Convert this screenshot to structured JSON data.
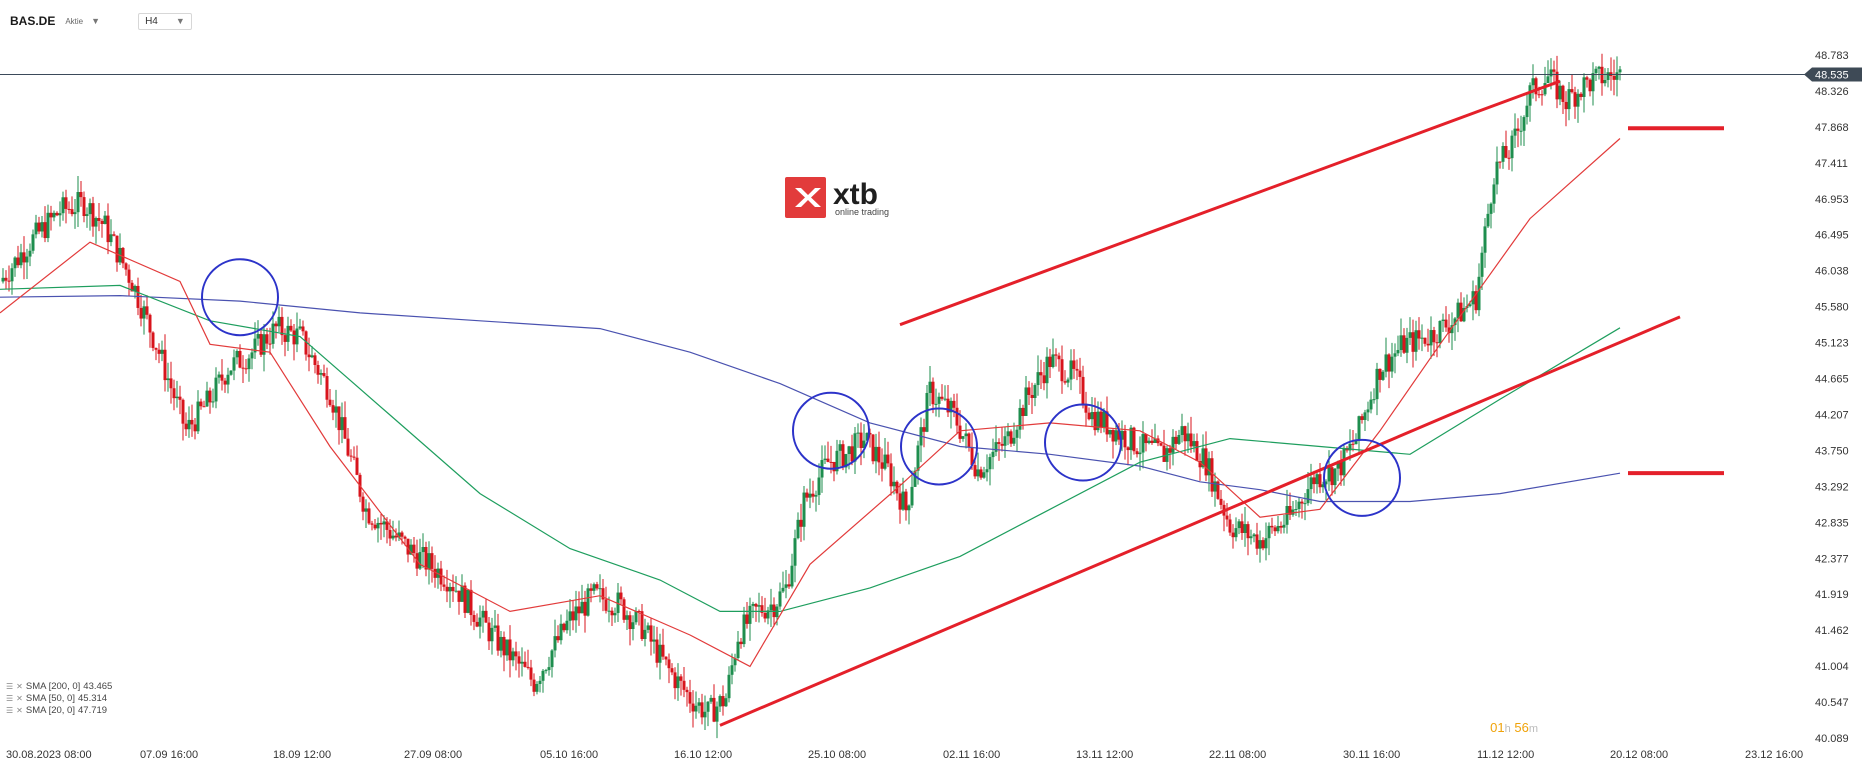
{
  "header": {
    "symbol": "BAS.DE",
    "symbol_type": "Aktie",
    "timeframe": "H4"
  },
  "watermark": {
    "brand": "xtb",
    "tagline": "online trading"
  },
  "indicators": [
    {
      "label": "SMA [200, 0]",
      "value": "43.465",
      "color": "#4a52b0"
    },
    {
      "label": "SMA [50, 0]",
      "value": "45.314",
      "color": "#1e9e5e"
    },
    {
      "label": "SMA [20, 0]",
      "value": "47.719",
      "color": "#e23b3b"
    }
  ],
  "timer": {
    "hours": "01",
    "h_unit": "h",
    "minutes": "56",
    "m_unit": "m"
  },
  "chart_data": {
    "type": "candlestick",
    "ylim": [
      40.089,
      48.783
    ],
    "y_ticks": [
      "48.783",
      "48.326",
      "47.868",
      "47.411",
      "46.953",
      "46.495",
      "46.038",
      "45.580",
      "45.123",
      "44.665",
      "44.207",
      "43.750",
      "43.292",
      "42.835",
      "42.377",
      "41.919",
      "41.462",
      "41.004",
      "40.547",
      "40.089"
    ],
    "x_ticks": [
      "30.08.2023  08:00",
      "07.09  16:00",
      "18.09  12:00",
      "27.09  08:00",
      "05.10  16:00",
      "16.10  12:00",
      "25.10  08:00",
      "02.11  16:00",
      "13.11  12:00",
      "22.11  08:00",
      "30.11  16:00",
      "11.12  12:00",
      "20.12  08:00",
      "23.12  16:00"
    ],
    "current_price": "48.535",
    "close_path": [
      [
        0,
        45.9
      ],
      [
        10,
        46.4
      ],
      [
        20,
        46.8
      ],
      [
        28,
        46.9
      ],
      [
        35,
        46.6
      ],
      [
        44,
        45.9
      ],
      [
        53,
        45.0
      ],
      [
        62,
        44.0
      ],
      [
        70,
        44.4
      ],
      [
        76,
        44.8
      ],
      [
        84,
        45.0
      ],
      [
        92,
        45.3
      ],
      [
        100,
        45.2
      ],
      [
        110,
        44.5
      ],
      [
        122,
        43.0
      ],
      [
        136,
        42.5
      ],
      [
        150,
        42.1
      ],
      [
        164,
        41.4
      ],
      [
        178,
        40.8
      ],
      [
        190,
        41.6
      ],
      [
        198,
        41.9
      ],
      [
        206,
        41.8
      ],
      [
        214,
        41.5
      ],
      [
        222,
        41.0
      ],
      [
        230,
        40.6
      ],
      [
        236,
        40.4
      ],
      [
        242,
        40.6
      ],
      [
        246,
        41.4
      ],
      [
        252,
        41.7
      ],
      [
        258,
        41.8
      ],
      [
        262,
        42.0
      ],
      [
        268,
        43.1
      ],
      [
        276,
        43.6
      ],
      [
        282,
        43.7
      ],
      [
        288,
        43.9
      ],
      [
        296,
        43.5
      ],
      [
        302,
        43.0
      ],
      [
        310,
        44.5
      ],
      [
        318,
        44.2
      ],
      [
        326,
        43.5
      ],
      [
        336,
        43.9
      ],
      [
        342,
        44.4
      ],
      [
        350,
        44.9
      ],
      [
        358,
        44.7
      ],
      [
        364,
        44.2
      ],
      [
        372,
        44.0
      ],
      [
        380,
        43.8
      ],
      [
        388,
        43.7
      ],
      [
        394,
        44.0
      ],
      [
        402,
        43.6
      ],
      [
        410,
        42.8
      ],
      [
        420,
        42.6
      ],
      [
        430,
        42.9
      ],
      [
        438,
        43.4
      ],
      [
        446,
        43.5
      ],
      [
        452,
        43.9
      ],
      [
        460,
        44.8
      ],
      [
        468,
        45.1
      ],
      [
        476,
        45.2
      ],
      [
        484,
        45.4
      ],
      [
        492,
        45.7
      ],
      [
        498,
        47.3
      ],
      [
        504,
        47.6
      ],
      [
        510,
        48.3
      ],
      [
        516,
        48.5
      ],
      [
        522,
        48.2
      ],
      [
        528,
        48.4
      ],
      [
        534,
        48.5
      ],
      [
        540,
        48.53
      ]
    ],
    "series": [
      {
        "name": "SMA [200, 0]",
        "color": "#4a52b0",
        "values": [
          [
            0,
            45.7
          ],
          [
            40,
            45.72
          ],
          [
            80,
            45.65
          ],
          [
            120,
            45.5
          ],
          [
            160,
            45.4
          ],
          [
            200,
            45.3
          ],
          [
            230,
            45.0
          ],
          [
            260,
            44.6
          ],
          [
            290,
            44.1
          ],
          [
            320,
            43.8
          ],
          [
            350,
            43.7
          ],
          [
            380,
            43.55
          ],
          [
            400,
            43.35
          ],
          [
            420,
            43.25
          ],
          [
            440,
            43.1
          ],
          [
            470,
            43.1
          ],
          [
            500,
            43.2
          ],
          [
            540,
            43.46
          ]
        ]
      },
      {
        "name": "SMA [50, 0]",
        "color": "#1e9e5e",
        "values": [
          [
            0,
            45.8
          ],
          [
            40,
            45.85
          ],
          [
            70,
            45.4
          ],
          [
            100,
            45.2
          ],
          [
            130,
            44.2
          ],
          [
            160,
            43.2
          ],
          [
            190,
            42.5
          ],
          [
            220,
            42.1
          ],
          [
            240,
            41.7
          ],
          [
            260,
            41.7
          ],
          [
            290,
            42.0
          ],
          [
            320,
            42.4
          ],
          [
            350,
            43.0
          ],
          [
            380,
            43.6
          ],
          [
            410,
            43.9
          ],
          [
            440,
            43.8
          ],
          [
            470,
            43.7
          ],
          [
            500,
            44.4
          ],
          [
            540,
            45.31
          ]
        ]
      },
      {
        "name": "SMA [20, 0]",
        "color": "#e23b3b",
        "values": [
          [
            0,
            45.5
          ],
          [
            30,
            46.4
          ],
          [
            60,
            45.9
          ],
          [
            70,
            45.1
          ],
          [
            90,
            45.0
          ],
          [
            110,
            43.8
          ],
          [
            140,
            42.3
          ],
          [
            170,
            41.7
          ],
          [
            200,
            41.9
          ],
          [
            230,
            41.4
          ],
          [
            250,
            41.0
          ],
          [
            270,
            42.3
          ],
          [
            300,
            43.3
          ],
          [
            320,
            44.0
          ],
          [
            350,
            44.1
          ],
          [
            380,
            44.0
          ],
          [
            400,
            43.6
          ],
          [
            420,
            42.9
          ],
          [
            440,
            43.0
          ],
          [
            460,
            44.0
          ],
          [
            480,
            45.1
          ],
          [
            510,
            46.7
          ],
          [
            540,
            47.72
          ]
        ]
      }
    ],
    "trendlines": [
      {
        "name": "upper channel",
        "from": [
          300,
          45.35
        ],
        "to": [
          520,
          48.45
        ]
      },
      {
        "name": "lower channel",
        "from": [
          240,
          40.25
        ],
        "to": [
          560,
          45.45
        ]
      }
    ],
    "levels": [
      {
        "price": 47.85
      },
      {
        "price": 43.46
      }
    ],
    "circles": [
      {
        "x": 80,
        "price": 45.7
      },
      {
        "x": 277,
        "price": 44.0
      },
      {
        "x": 313,
        "price": 43.8
      },
      {
        "x": 361,
        "price": 43.85
      },
      {
        "x": 454,
        "price": 43.4
      }
    ]
  }
}
